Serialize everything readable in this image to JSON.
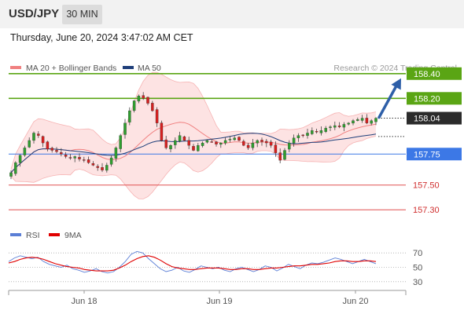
{
  "header": {
    "symbol": "USD/JPY",
    "interval": "30 MIN",
    "datetime": "Thursday, June 20, 2024 3:47:02 AM CET"
  },
  "legend": {
    "ma20": "MA 20 + Bollinger Bands",
    "ma50": "MA 50",
    "ma20_color": "#f08080",
    "ma50_color": "#1f3f7a",
    "copyright": "Research © 2024 Trading Central"
  },
  "chart_data": [
    {
      "type": "candlestick",
      "instrument": "USD/JPY",
      "interval": "30 MIN",
      "ylim": [
        157.2,
        158.5
      ],
      "x_ticks": [
        "Jun 18",
        "Jun 19",
        "Jun 20"
      ],
      "current_price": {
        "label": "158.04",
        "value": 158.04
      },
      "price_levels": [
        {
          "label": "158.40",
          "value": 158.4,
          "kind": "resistance",
          "color": "#5aa514"
        },
        {
          "label": "158.20",
          "value": 158.2,
          "kind": "resistance",
          "color": "#5aa514"
        },
        {
          "label": "157.75",
          "value": 157.75,
          "kind": "pivot",
          "color": "#3c78e6"
        },
        {
          "label": "157.50",
          "value": 157.5,
          "kind": "support",
          "color": "#e05050"
        },
        {
          "label": "157.30",
          "value": 157.3,
          "kind": "support",
          "color": "#e05050"
        }
      ],
      "forecast_arrow": {
        "from": 158.04,
        "to": 158.4,
        "color": "#2e5fa8"
      },
      "close_path": [
        157.6,
        157.68,
        157.74,
        157.8,
        157.86,
        157.92,
        157.9,
        157.84,
        157.79,
        157.78,
        157.77,
        157.75,
        157.73,
        157.72,
        157.73,
        157.71,
        157.7,
        157.68,
        157.66,
        157.64,
        157.62,
        157.66,
        157.72,
        157.8,
        157.9,
        158.0,
        158.1,
        158.18,
        158.22,
        158.2,
        158.16,
        158.1,
        158.0,
        157.86,
        157.8,
        157.82,
        157.86,
        157.9,
        157.86,
        157.82,
        157.78,
        157.82,
        157.84,
        157.86,
        157.85,
        157.83,
        157.84,
        157.86,
        157.87,
        157.88,
        157.86,
        157.82,
        157.8,
        157.84,
        157.86,
        157.85,
        157.84,
        157.82,
        157.76,
        157.7,
        157.78,
        157.84,
        157.88,
        157.9,
        157.9,
        157.92,
        157.94,
        157.93,
        157.94,
        157.96,
        157.97,
        157.98,
        157.97,
        157.99,
        158.0,
        158.02,
        158.03,
        158.04,
        158.0,
        158.02,
        158.04
      ]
    },
    {
      "type": "line",
      "indicator": "RSI",
      "series": [
        {
          "name": "RSI",
          "color": "#5b7fd6"
        },
        {
          "name": "9MA",
          "color": "#e00000"
        }
      ],
      "ylim": [
        20,
        80
      ],
      "y_ticks": [
        70,
        50,
        30
      ],
      "rsi_path": [
        58,
        63,
        66,
        64,
        62,
        64,
        58,
        54,
        52,
        50,
        53,
        48,
        46,
        43,
        45,
        48,
        44,
        42,
        44,
        50,
        58,
        68,
        72,
        70,
        62,
        55,
        48,
        44,
        46,
        50,
        45,
        43,
        47,
        52,
        50,
        48,
        50,
        46,
        44,
        48,
        50,
        47,
        44,
        47,
        52,
        50,
        45,
        49,
        54,
        51,
        48,
        53,
        56,
        55,
        57,
        60,
        63,
        61,
        58,
        55,
        58,
        61,
        58,
        55
      ],
      "ma9_path": [
        56,
        58,
        61,
        63,
        64,
        63,
        61,
        58,
        55,
        53,
        51,
        50,
        49,
        47,
        46,
        45,
        45,
        45,
        46,
        49,
        53,
        58,
        62,
        65,
        66,
        64,
        60,
        55,
        51,
        49,
        48,
        47,
        47,
        48,
        49,
        49,
        49,
        48,
        47,
        47,
        48,
        48,
        47,
        47,
        48,
        49,
        49,
        50,
        51,
        52,
        52,
        53,
        54,
        54,
        55,
        56,
        58,
        59,
        59,
        58,
        58,
        59,
        59,
        58
      ]
    }
  ]
}
